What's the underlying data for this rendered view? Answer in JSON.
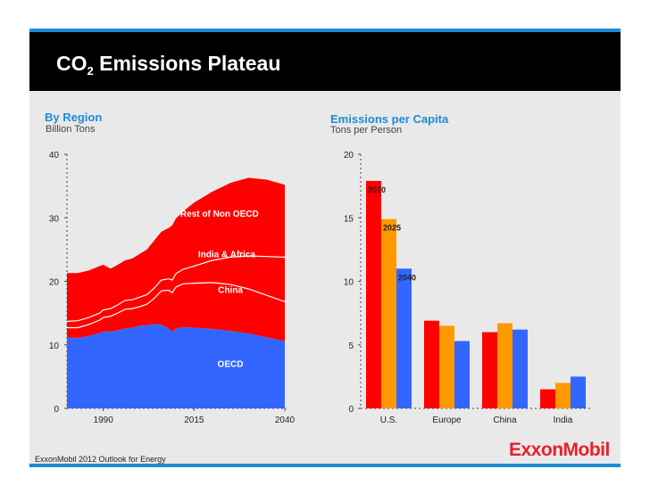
{
  "title": {
    "main": "CO",
    "sub": "2",
    "rest": " Emissions Plateau"
  },
  "left": {
    "title": "By Region",
    "subtitle": "Billion Tons"
  },
  "right": {
    "title": "Emissions per Capita",
    "subtitle": "Tons per Person"
  },
  "footer": "ExxonMobil 2012 Outlook for Energy",
  "logo": "ExxonMobil",
  "colors": {
    "accent": "#1d8bd6",
    "red": "#ff0000",
    "orange": "#ff9900",
    "blue": "#3366ff",
    "oecd": "#3366ff",
    "panel": "#e9e9e9"
  },
  "chart_data": [
    {
      "type": "area",
      "title": "By Region",
      "ylabel": "Billion Tons",
      "ylim": [
        0,
        40
      ],
      "yticks": [
        0,
        10,
        20,
        30,
        40
      ],
      "xlim": [
        1980,
        2040
      ],
      "xticks": [
        1990,
        2015,
        2040
      ],
      "x": [
        1980,
        1983,
        1986,
        1989,
        1990,
        1992,
        1994,
        1996,
        1998,
        2000,
        2002,
        2004,
        2006,
        2008,
        2009,
        2010,
        2012,
        2015,
        2020,
        2025,
        2030,
        2035,
        2040
      ],
      "series": [
        {
          "name": "OECD",
          "values": [
            11.2,
            11.1,
            11.4,
            11.9,
            12.1,
            12.1,
            12.3,
            12.6,
            12.7,
            13.0,
            13.1,
            13.3,
            13.2,
            12.6,
            12.0,
            12.6,
            12.8,
            12.7,
            12.5,
            12.2,
            11.8,
            11.2,
            10.6
          ]
        },
        {
          "name": "China",
          "values": [
            1.5,
            1.6,
            1.8,
            2.0,
            2.2,
            2.4,
            2.7,
            3.0,
            3.0,
            3.0,
            3.3,
            4.0,
            5.3,
            6.0,
            6.2,
            6.5,
            6.8,
            7.0,
            7.3,
            7.3,
            7.0,
            6.6,
            6.2
          ]
        },
        {
          "name": "India & Africa",
          "values": [
            1.0,
            1.1,
            1.1,
            1.1,
            1.2,
            1.2,
            1.3,
            1.4,
            1.4,
            1.5,
            1.5,
            1.6,
            1.7,
            1.8,
            2.0,
            2.1,
            2.3,
            2.7,
            3.5,
            4.3,
            5.2,
            6.1,
            7.0
          ]
        },
        {
          "name": "Rest of Non OECD",
          "values": [
            7.6,
            7.5,
            7.4,
            7.4,
            7.1,
            6.3,
            6.3,
            6.3,
            6.5,
            6.8,
            7.1,
            7.5,
            7.6,
            8.0,
            8.6,
            8.7,
            9.1,
            10.0,
            10.8,
            11.7,
            12.3,
            12.1,
            11.4
          ]
        }
      ],
      "labels": [
        "Rest of Non OECD",
        "India & Africa",
        "China",
        "OECD"
      ]
    },
    {
      "type": "bar",
      "title": "Emissions per Capita",
      "ylabel": "Tons per Person",
      "ylim": [
        0,
        20
      ],
      "yticks": [
        0,
        5,
        10,
        15,
        20
      ],
      "categories": [
        "U.S.",
        "Europe",
        "China",
        "India"
      ],
      "series": [
        {
          "name": "2010",
          "values": [
            17.9,
            6.9,
            6.0,
            1.5
          ]
        },
        {
          "name": "2025",
          "values": [
            14.9,
            6.5,
            6.7,
            2.0
          ]
        },
        {
          "name": "2040",
          "values": [
            11.0,
            5.3,
            6.2,
            2.5
          ]
        }
      ],
      "data_labels": [
        "2010",
        "2025",
        "2040"
      ]
    }
  ]
}
